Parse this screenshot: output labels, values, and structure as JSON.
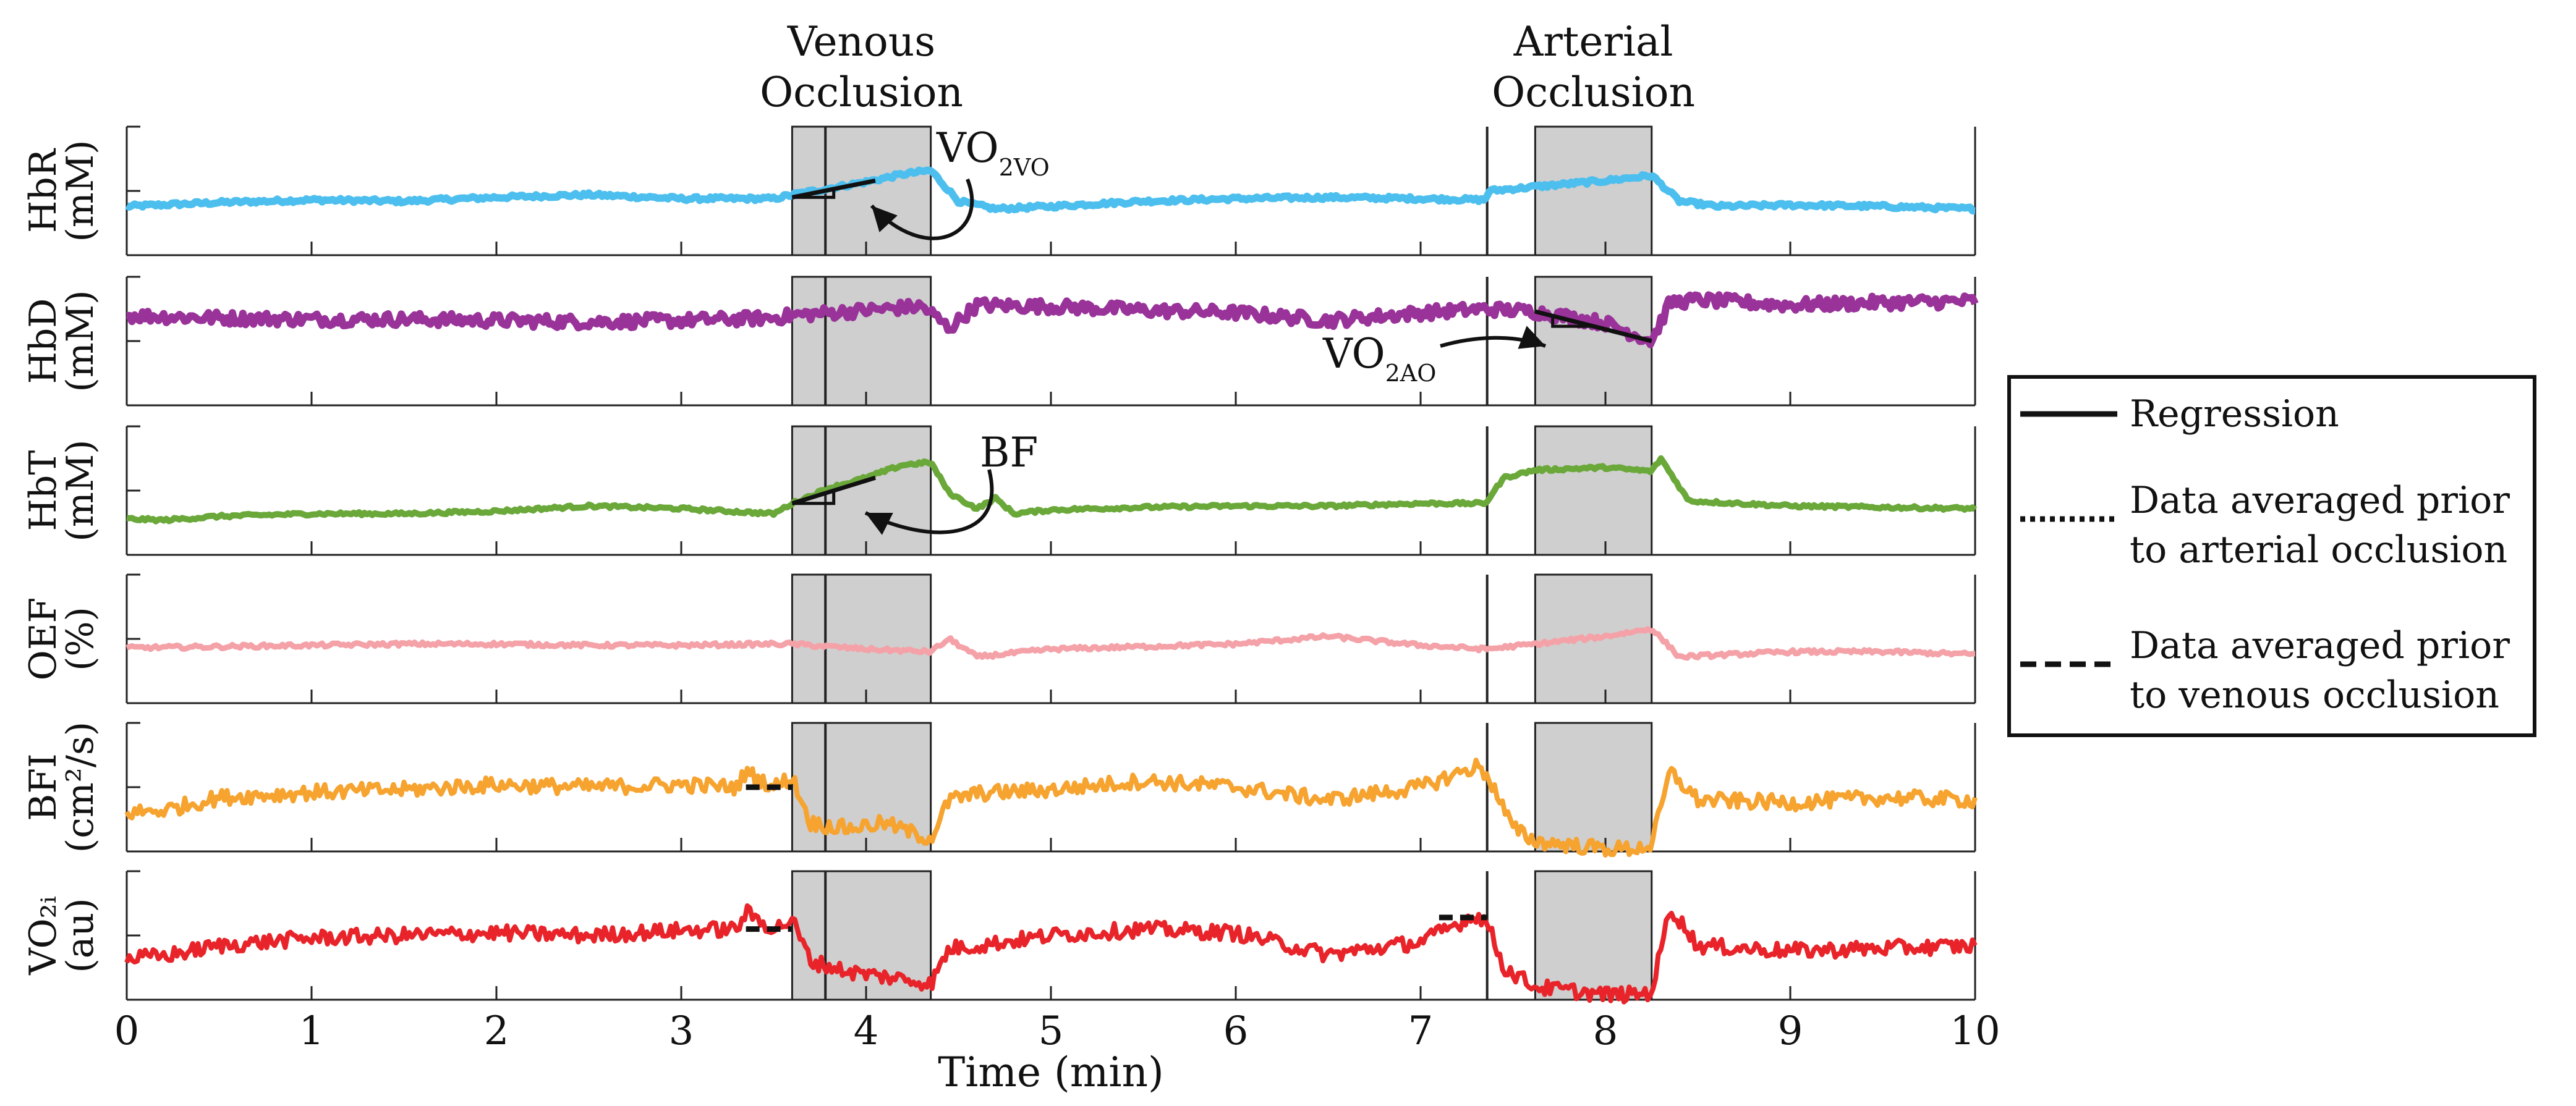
{
  "chart_data": {
    "type": "line",
    "xlabel": "Time (min)",
    "xlim": [
      0,
      10
    ],
    "xticks": [
      0,
      1,
      2,
      3,
      4,
      5,
      6,
      7,
      8,
      9,
      10
    ],
    "regions": [
      {
        "label_line1": "Venous",
        "label_line2": "Occlusion",
        "x_start": 3.6,
        "x_mid": 3.78,
        "x_end": 4.35,
        "fill": "#cfcfcf"
      },
      {
        "label_line1": "Arterial",
        "label_line2": "Occlusion",
        "x_start": 7.62,
        "x_mid": 7.36,
        "x_end": 8.25,
        "fill": "#cfcfcf"
      }
    ],
    "series": [
      {
        "id": "hbr",
        "ylabel_line1": "HbR",
        "ylabel_line2": "(mM)",
        "color": "#4dbfee",
        "width": 12,
        "noise": 0.015,
        "ylim": [
          0,
          1
        ],
        "x": [
          0,
          0.5,
          1,
          1.5,
          2,
          2.5,
          3,
          3.5,
          3.6,
          3.8,
          4.0,
          4.2,
          4.35,
          4.5,
          4.7,
          5,
          5.5,
          6,
          6.5,
          7,
          7.35,
          7.37,
          7.6,
          8.0,
          8.25,
          8.4,
          8.6,
          9,
          9.5,
          10
        ],
        "y": [
          0.38,
          0.41,
          0.43,
          0.42,
          0.45,
          0.47,
          0.44,
          0.44,
          0.47,
          0.52,
          0.57,
          0.63,
          0.66,
          0.42,
          0.36,
          0.38,
          0.42,
          0.44,
          0.45,
          0.44,
          0.43,
          0.5,
          0.53,
          0.58,
          0.62,
          0.42,
          0.38,
          0.39,
          0.38,
          0.36
        ]
      },
      {
        "id": "hbd",
        "ylabel_line1": "HbD",
        "ylabel_line2": "(mM)",
        "color": "#993399",
        "width": 12,
        "noise": 0.05,
        "ylim": [
          0,
          1
        ],
        "x": [
          0,
          0.5,
          1,
          1.5,
          2,
          2.5,
          3,
          3.5,
          3.6,
          3.8,
          4.0,
          4.3,
          4.35,
          4.45,
          4.6,
          5,
          5.5,
          6,
          6.5,
          7,
          7.35,
          7.62,
          8.0,
          8.25,
          8.35,
          8.5,
          9,
          9.5,
          10
        ],
        "y": [
          0.7,
          0.68,
          0.67,
          0.67,
          0.66,
          0.65,
          0.66,
          0.68,
          0.7,
          0.72,
          0.74,
          0.77,
          0.72,
          0.6,
          0.78,
          0.77,
          0.74,
          0.72,
          0.66,
          0.72,
          0.75,
          0.73,
          0.64,
          0.5,
          0.8,
          0.82,
          0.78,
          0.8,
          0.81
        ]
      },
      {
        "id": "hbt",
        "ylabel_line1": "HbT",
        "ylabel_line2": "(mM)",
        "color": "#6aa83a",
        "width": 10,
        "noise": 0.012,
        "ylim": [
          0,
          1
        ],
        "x": [
          0,
          0.2,
          0.5,
          1,
          1.5,
          2,
          2.5,
          3,
          3.5,
          3.6,
          3.8,
          4.0,
          4.2,
          4.35,
          4.45,
          4.6,
          4.7,
          4.8,
          5,
          5.5,
          6,
          6.5,
          7,
          7.35,
          7.45,
          7.62,
          8.0,
          8.25,
          8.3,
          8.45,
          9,
          9.5,
          10
        ],
        "y": [
          0.28,
          0.27,
          0.3,
          0.32,
          0.32,
          0.34,
          0.38,
          0.36,
          0.32,
          0.4,
          0.52,
          0.6,
          0.7,
          0.72,
          0.48,
          0.36,
          0.44,
          0.32,
          0.35,
          0.37,
          0.38,
          0.38,
          0.4,
          0.4,
          0.6,
          0.66,
          0.68,
          0.65,
          0.75,
          0.42,
          0.38,
          0.37,
          0.36
        ]
      },
      {
        "id": "oef",
        "ylabel_line1": "OEF",
        "ylabel_line2": "(%)",
        "color": "#f4a2a8",
        "width": 9,
        "noise": 0.015,
        "ylim": [
          0,
          1
        ],
        "x": [
          0,
          0.5,
          1,
          1.5,
          2,
          2.5,
          3,
          3.5,
          3.6,
          3.8,
          4.0,
          4.35,
          4.45,
          4.6,
          5,
          5.5,
          6,
          6.5,
          7,
          7.35,
          7.62,
          8.0,
          8.25,
          8.4,
          9,
          9.5,
          10
        ],
        "y": [
          0.43,
          0.44,
          0.45,
          0.46,
          0.46,
          0.45,
          0.45,
          0.46,
          0.46,
          0.44,
          0.42,
          0.4,
          0.5,
          0.36,
          0.42,
          0.44,
          0.46,
          0.52,
          0.45,
          0.42,
          0.46,
          0.52,
          0.58,
          0.36,
          0.4,
          0.4,
          0.38
        ]
      },
      {
        "id": "bfi",
        "ylabel_line1": "BFI",
        "ylabel_line2": "(cm²/s)",
        "color": "#f6a32f",
        "width": 8,
        "noise": 0.06,
        "ylim": [
          0,
          1
        ],
        "x": [
          0,
          0.2,
          0.5,
          1,
          1.5,
          2,
          2.5,
          3,
          3.3,
          3.35,
          3.5,
          3.6,
          3.7,
          3.9,
          4.1,
          4.3,
          4.35,
          4.45,
          4.6,
          5,
          5.5,
          6,
          6.5,
          7,
          7.3,
          7.36,
          7.5,
          7.62,
          8.0,
          8.15,
          8.25,
          8.35,
          8.5,
          9,
          9.5,
          10
        ],
        "y": [
          0.3,
          0.32,
          0.42,
          0.46,
          0.48,
          0.52,
          0.5,
          0.52,
          0.5,
          0.62,
          0.5,
          0.58,
          0.22,
          0.18,
          0.22,
          0.12,
          0.1,
          0.4,
          0.45,
          0.48,
          0.55,
          0.5,
          0.4,
          0.5,
          0.66,
          0.6,
          0.18,
          0.08,
          0.02,
          0.02,
          0.05,
          0.62,
          0.4,
          0.38,
          0.42,
          0.4
        ]
      },
      {
        "id": "vo2i",
        "ylabel_line1": "VO₂ᵢ",
        "ylabel_line2": "(au)",
        "color": "#e8242a",
        "width": 8,
        "noise": 0.06,
        "ylim": [
          0,
          1
        ],
        "x": [
          0,
          0.2,
          0.5,
          1,
          1.5,
          2,
          2.5,
          3,
          3.3,
          3.35,
          3.5,
          3.6,
          3.7,
          3.9,
          4.1,
          4.3,
          4.35,
          4.45,
          4.6,
          5,
          5.5,
          6,
          6.5,
          7,
          7.3,
          7.36,
          7.45,
          7.62,
          8.0,
          8.15,
          8.25,
          8.35,
          8.5,
          9,
          9.5,
          10
        ],
        "y": [
          0.32,
          0.34,
          0.42,
          0.48,
          0.5,
          0.52,
          0.5,
          0.54,
          0.55,
          0.68,
          0.55,
          0.62,
          0.3,
          0.22,
          0.18,
          0.14,
          0.12,
          0.4,
          0.42,
          0.5,
          0.55,
          0.52,
          0.35,
          0.45,
          0.66,
          0.6,
          0.25,
          0.1,
          0.04,
          0.04,
          0.06,
          0.72,
          0.42,
          0.38,
          0.4,
          0.42
        ]
      }
    ],
    "dashed_markers": [
      {
        "panel": "bfi",
        "x_start": 3.35,
        "x_end": 3.6,
        "y": 0.5
      },
      {
        "panel": "vo2i",
        "x_start": 3.35,
        "x_end": 3.6,
        "y": 0.55
      },
      {
        "panel": "vo2i",
        "x_start": 7.1,
        "x_end": 7.36,
        "y": 0.64
      }
    ],
    "regressions": [
      {
        "panel": "hbr",
        "x_start": 3.6,
        "x_end": 4.05,
        "y_start": 0.45,
        "y_end": 0.58
      },
      {
        "panel": "hbd",
        "x_start": 7.62,
        "x_end": 8.25,
        "y_start": 0.73,
        "y_end": 0.5
      },
      {
        "panel": "hbt",
        "x_start": 3.6,
        "x_end": 4.05,
        "y_start": 0.4,
        "y_end": 0.6
      }
    ],
    "annotations": [
      {
        "id": "vo2vo",
        "main": "VO",
        "sub": "2VO",
        "panel": "hbr"
      },
      {
        "id": "vo2ao",
        "main": "VO",
        "sub": "2AO",
        "panel": "hbd"
      },
      {
        "id": "bf",
        "main": "BF",
        "sub": "",
        "panel": "hbt"
      }
    ],
    "legend": {
      "placement": "right",
      "entries": [
        {
          "style": "solid",
          "line1": "Regression",
          "line2": ""
        },
        {
          "style": "dotted",
          "line1": "Data averaged prior",
          "line2": "to arterial occlusion"
        },
        {
          "style": "dashed",
          "line1": "Data averaged prior",
          "line2": "to venous occlusion"
        }
      ]
    }
  }
}
